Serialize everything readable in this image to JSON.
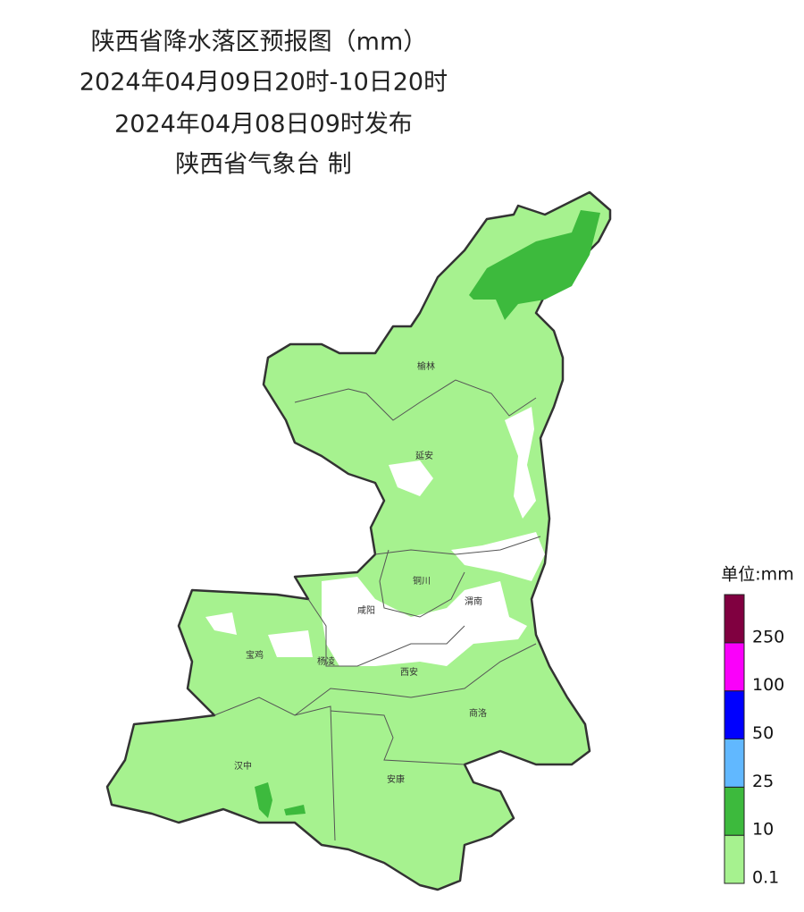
{
  "header": {
    "title": "陕西省降水落区预报图（mm）",
    "period": "2024年04月09日20时-10日20时",
    "issued": "2024年04月08日09时发布",
    "issuer": "陕西省气象台 制"
  },
  "cities": [
    "榆林",
    "延安",
    "铜川",
    "渭南",
    "咸阳",
    "宝鸡",
    "杨凌",
    "西安",
    "商洛",
    "汉中",
    "安康"
  ],
  "legend": {
    "title": "单位:mm",
    "colors": [
      "#a6f28f",
      "#3dba3d",
      "#61b8ff",
      "#0000fe",
      "#fa00fa",
      "#800040"
    ],
    "labels": [
      "0.1",
      "10",
      "25",
      "50",
      "100",
      "250"
    ]
  }
}
